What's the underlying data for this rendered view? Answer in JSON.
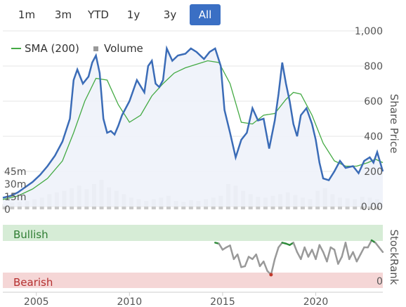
{
  "range_buttons": [
    {
      "label": "1m",
      "active": false
    },
    {
      "label": "3m",
      "active": false
    },
    {
      "label": "YTD",
      "active": false
    },
    {
      "label": "1y",
      "active": false
    },
    {
      "label": "3y",
      "active": false
    },
    {
      "label": "All",
      "active": true
    }
  ],
  "colors": {
    "price": "#3b6cb7",
    "sma": "#44aa44",
    "volume": "#c8c8c8",
    "area": "#eef2fa",
    "stockrank_line": "#999999",
    "bullish_line": "#2e8b3a",
    "bearish_line": "#c0392b",
    "bullish_band": "#d6ecd6",
    "bearish_band": "#f5d6d6"
  },
  "chart_data": [
    {
      "type": "line",
      "xlabel": "",
      "ylabel": "Share Price",
      "ylim": [
        0,
        1000
      ],
      "y_ticks": [
        "0.00",
        "200",
        "400",
        "600",
        "800",
        "1,000"
      ],
      "volume_ticks": [
        "0",
        "15m",
        "30m",
        "45m"
      ],
      "volume_ylim": [
        0,
        60
      ],
      "x_ticks": [
        "2005",
        "2010",
        "2015",
        "2020"
      ],
      "xlim": [
        2003.2,
        2023.6
      ],
      "legend": [
        "SMA (200)",
        "Volume"
      ],
      "legend_position": "top-left",
      "grid": true,
      "series": [
        {
          "name": "Share Price",
          "x": [
            2003.2,
            2003.6,
            2004.0,
            2004.4,
            2004.8,
            2005.2,
            2005.6,
            2006.0,
            2006.4,
            2006.8,
            2007.0,
            2007.2,
            2007.5,
            2007.8,
            2008.0,
            2008.2,
            2008.4,
            2008.6,
            2008.8,
            2009.0,
            2009.2,
            2009.4,
            2009.6,
            2010.0,
            2010.4,
            2010.8,
            2011.0,
            2011.2,
            2011.4,
            2011.6,
            2011.8,
            2012.0,
            2012.3,
            2012.6,
            2013.0,
            2013.3,
            2013.6,
            2014.0,
            2014.3,
            2014.6,
            2014.9,
            2015.1,
            2015.4,
            2015.7,
            2016.0,
            2016.3,
            2016.6,
            2016.9,
            2017.2,
            2017.5,
            2017.8,
            2018.0,
            2018.2,
            2018.4,
            2018.6,
            2018.8,
            2019.0,
            2019.2,
            2019.5,
            2019.8,
            2020.0,
            2020.2,
            2020.4,
            2020.7,
            2021.0,
            2021.3,
            2021.6,
            2022.0,
            2022.3,
            2022.6,
            2022.9,
            2023.1,
            2023.3,
            2023.6
          ],
          "values": [
            50,
            60,
            80,
            110,
            140,
            180,
            230,
            290,
            370,
            500,
            720,
            780,
            700,
            740,
            820,
            860,
            760,
            500,
            420,
            430,
            410,
            460,
            520,
            600,
            720,
            650,
            800,
            830,
            700,
            680,
            720,
            900,
            830,
            860,
            870,
            900,
            880,
            840,
            880,
            900,
            800,
            550,
            420,
            280,
            380,
            420,
            560,
            490,
            500,
            330,
            490,
            640,
            820,
            700,
            600,
            470,
            400,
            520,
            560,
            470,
            380,
            250,
            160,
            150,
            200,
            260,
            220,
            230,
            190,
            260,
            280,
            250,
            310,
            200
          ],
          "color": "#3b6cb7"
        },
        {
          "name": "SMA (200)",
          "x": [
            2003.2,
            2004.0,
            2004.8,
            2005.6,
            2006.4,
            2007.0,
            2007.6,
            2008.2,
            2008.8,
            2009.4,
            2010.0,
            2010.6,
            2011.2,
            2011.8,
            2012.4,
            2013.0,
            2013.6,
            2014.2,
            2014.8,
            2015.4,
            2016.0,
            2016.6,
            2017.2,
            2017.8,
            2018.4,
            2018.8,
            2019.2,
            2019.8,
            2020.4,
            2021.0,
            2021.6,
            2022.2,
            2022.8,
            2023.2,
            2023.6
          ],
          "values": [
            40,
            60,
            100,
            160,
            260,
            420,
            600,
            730,
            720,
            580,
            480,
            520,
            630,
            700,
            760,
            790,
            810,
            830,
            820,
            700,
            480,
            470,
            520,
            530,
            610,
            650,
            640,
            520,
            360,
            260,
            230,
            230,
            250,
            270,
            250
          ],
          "color": "#44aa44"
        },
        {
          "name": "Volume",
          "x": [
            2003.3,
            2003.7,
            2004.1,
            2004.5,
            2004.9,
            2005.3,
            2005.7,
            2006.1,
            2006.5,
            2006.9,
            2007.3,
            2007.7,
            2008.1,
            2008.5,
            2008.9,
            2009.3,
            2009.7,
            2010.1,
            2010.5,
            2010.9,
            2011.3,
            2011.7,
            2012.1,
            2012.5,
            2012.9,
            2013.3,
            2013.7,
            2014.1,
            2014.5,
            2014.9,
            2015.3,
            2015.7,
            2016.1,
            2016.5,
            2016.9,
            2017.3,
            2017.7,
            2018.1,
            2018.5,
            2018.9,
            2019.3,
            2019.7,
            2020.1,
            2020.5,
            2020.9,
            2021.3,
            2021.7,
            2022.1,
            2022.5,
            2022.9,
            2023.3
          ],
          "values": [
            6,
            8,
            9,
            10,
            12,
            14,
            18,
            20,
            22,
            25,
            28,
            24,
            30,
            35,
            26,
            22,
            18,
            14,
            12,
            10,
            12,
            14,
            16,
            10,
            9,
            11,
            10,
            12,
            14,
            16,
            30,
            28,
            22,
            18,
            15,
            14,
            16,
            18,
            20,
            17,
            14,
            12,
            22,
            25,
            18,
            14,
            13,
            12,
            15,
            14,
            12
          ],
          "color": "#c8c8c8"
        }
      ]
    },
    {
      "type": "line",
      "ylabel": "StockRank",
      "ylim": [
        0,
        100
      ],
      "bands": [
        {
          "label": "Bullish",
          "from": 75,
          "to": 100
        },
        {
          "label": "Bearish",
          "from": 0,
          "to": 15
        }
      ],
      "y_ticks": [
        "0"
      ],
      "series": [
        {
          "name": "StockRank",
          "x": [
            2014.6,
            2014.8,
            2015.0,
            2015.2,
            2015.4,
            2015.6,
            2015.8,
            2016.0,
            2016.2,
            2016.4,
            2016.6,
            2016.8,
            2017.0,
            2017.2,
            2017.4,
            2017.6,
            2017.8,
            2018.0,
            2018.2,
            2018.4,
            2018.6,
            2018.8,
            2019.0,
            2019.2,
            2019.4,
            2019.6,
            2019.8,
            2020.0,
            2020.2,
            2020.4,
            2020.6,
            2020.8,
            2021.0,
            2021.2,
            2021.4,
            2021.6,
            2021.8,
            2022.0,
            2022.2,
            2022.4,
            2022.6,
            2022.8,
            2023.0,
            2023.2,
            2023.4,
            2023.6
          ],
          "values": [
            80,
            78,
            65,
            70,
            74,
            45,
            55,
            28,
            30,
            50,
            45,
            55,
            30,
            40,
            20,
            12,
            45,
            70,
            80,
            78,
            75,
            80,
            60,
            45,
            70,
            50,
            65,
            45,
            75,
            60,
            40,
            70,
            65,
            35,
            50,
            80,
            45,
            60,
            40,
            55,
            70,
            70,
            85,
            80,
            70,
            60
          ]
        }
      ]
    }
  ]
}
